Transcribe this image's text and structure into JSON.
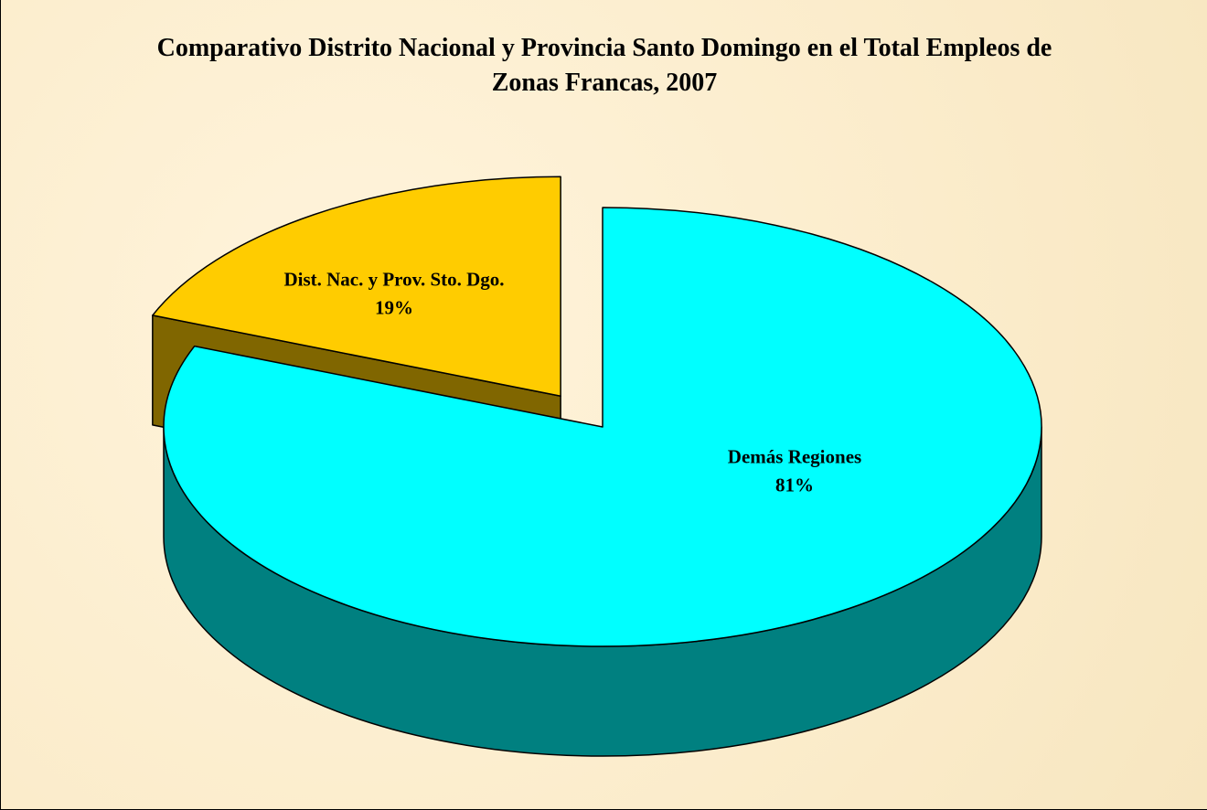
{
  "chart_data": {
    "type": "pie3d",
    "title": "Comparativo Distrito Nacional y Provincia Santo Domingo en el Total Empleos de Zonas Francas, 2007",
    "categories": [
      "Dist. Nac. y Prov. Sto. Dgo.",
      "Demás Regiones"
    ],
    "values": [
      19,
      81
    ],
    "value_labels": [
      "19%",
      "81%"
    ],
    "colors": [
      "#ffcc00",
      "#00ffff"
    ]
  }
}
